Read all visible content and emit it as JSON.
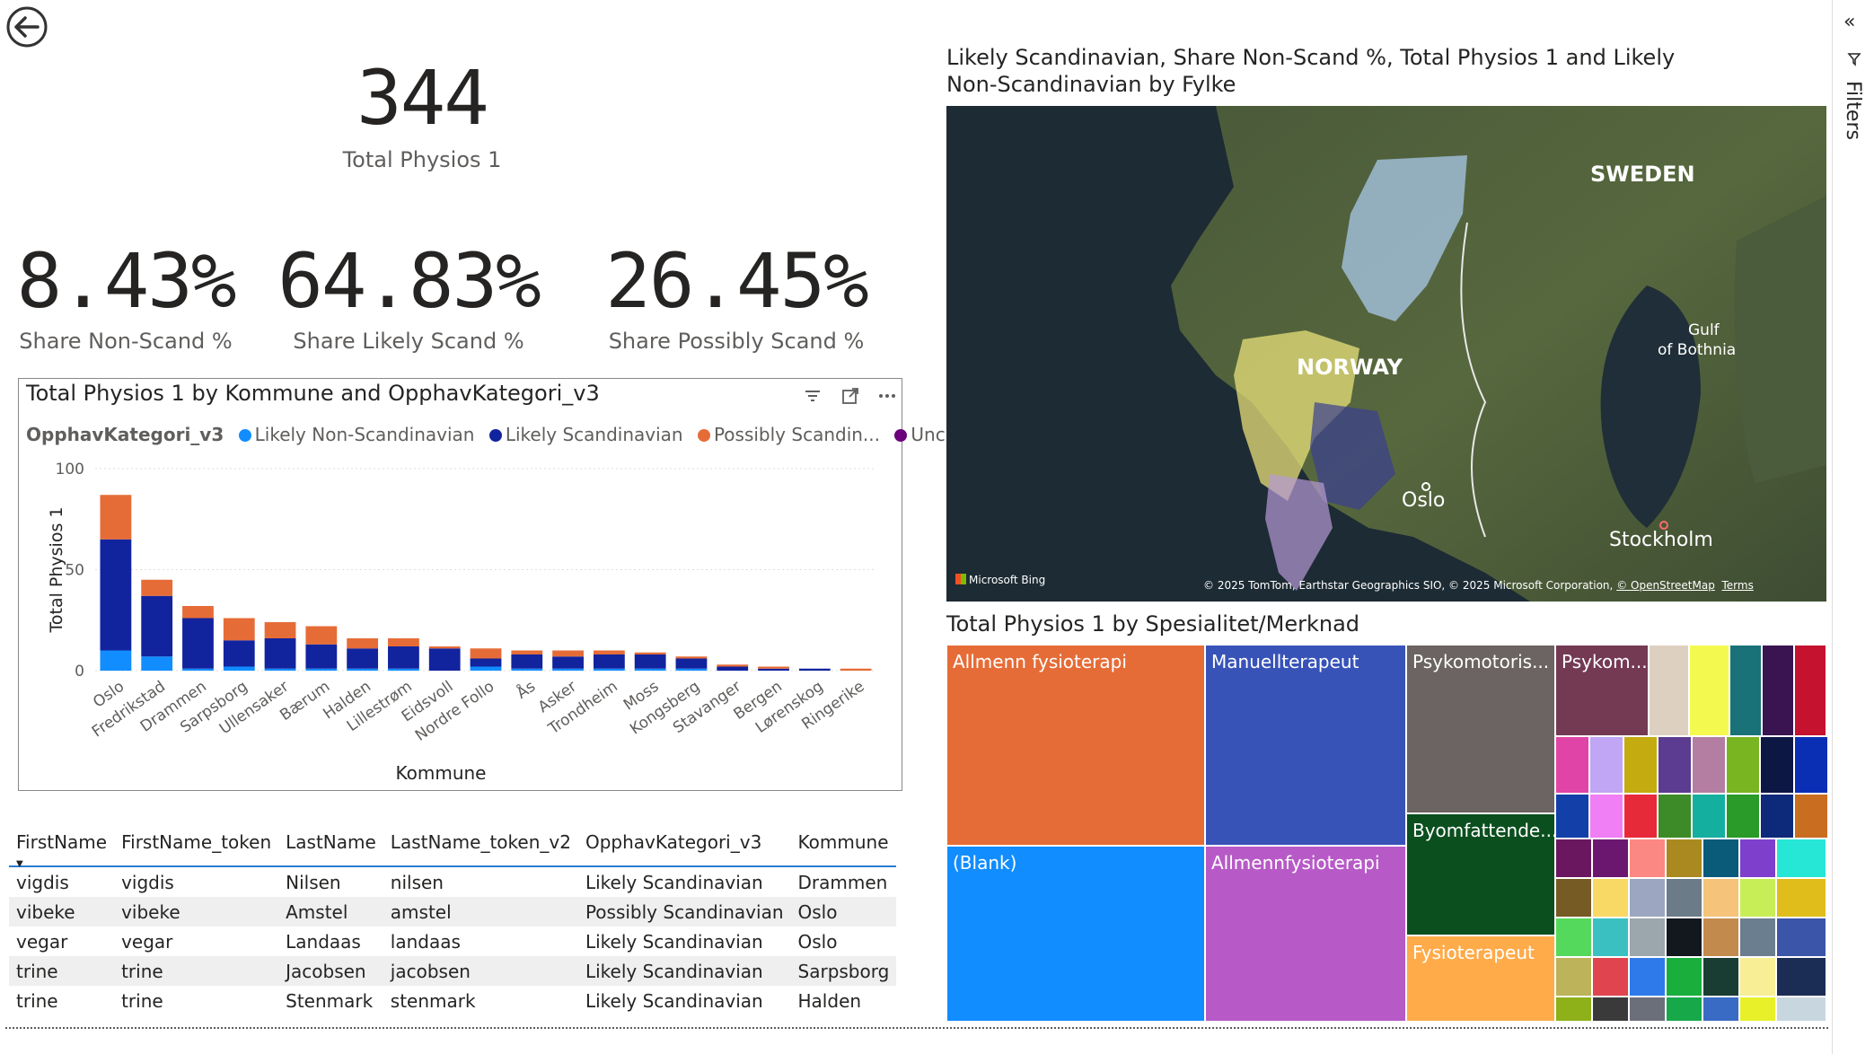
{
  "kpis": {
    "total": {
      "value": "344",
      "label": "Total Physios 1"
    },
    "non_scand": {
      "value": "8.43%",
      "label": "Share Non-Scand %"
    },
    "likely_scand": {
      "value": "64.83%",
      "label": "Share Likely Scand %"
    },
    "possibly_scand": {
      "value": "26.45%",
      "label": "Share Possibly Scand %"
    }
  },
  "bar_chart": {
    "title": "Total Physios 1 by Kommune and OpphavKategori_v3",
    "legend_title": "OpphavKategori_v3",
    "legend": [
      {
        "label": "Likely Non-Scandinavian",
        "color": "#118dff"
      },
      {
        "label": "Likely Scandinavian",
        "color": "#12239e"
      },
      {
        "label": "Possibly Scandin...",
        "color": "#e66c37"
      },
      {
        "label": "Unclear",
        "color": "#6b007b"
      }
    ]
  },
  "map": {
    "title_line1": "Likely Scandinavian, Share Non-Scand %, Total Physios 1 and Likely",
    "title_line2": "Non-Scandinavian by Fylke",
    "labels": {
      "sweden": "SWEDEN",
      "norway": "NORWAY",
      "gulf1": "Gulf",
      "gulf2": "of Bothnia",
      "oslo": "Oslo",
      "stockholm": "Stockholm"
    },
    "logo": "Microsoft Bing",
    "attribution": "© 2025 TomTom, Earthstar Geographics SIO, © 2025 Microsoft Corporation,",
    "osm": "© OpenStreetMap",
    "terms": "Terms"
  },
  "treemap": {
    "title": "Total Physios 1 by Spesialitet/Merknad",
    "tiles": [
      {
        "label": "Allmenn fysioterapi",
        "color": "#e66c37"
      },
      {
        "label": "(Blank)",
        "color": "#118dff"
      },
      {
        "label": "Manuellterapeut",
        "color": "#3853b8"
      },
      {
        "label": "Allmennfysioterapi",
        "color": "#b75ac7"
      },
      {
        "label": "Psykomotoris...",
        "color": "#6b6462"
      },
      {
        "label": "Byomfattende...",
        "color": "#0b4f1f"
      },
      {
        "label": "Fysioterapeut",
        "color": "#ffab4a"
      },
      {
        "label": "Psykom...",
        "color": "#743a54"
      }
    ],
    "small_colors": [
      "#ded0c0",
      "#f4f950",
      "#197278",
      "#3a1450",
      "#c4122f",
      "#e044a7",
      "#c0a6f5",
      "#c4ab10",
      "#5b3c90",
      "#b47ea3",
      "#79b521",
      "#0c1744",
      "#0a2fb5",
      "#1340a8",
      "#f07ef5",
      "#e62a3a",
      "#3d8a28",
      "#15afa0",
      "#2a9a28",
      "#0d2a7a",
      "#c96d20",
      "#6b1760",
      "#6b1770",
      "#fb8882",
      "#aa8a20",
      "#0a5a7a",
      "#7f3fcd",
      "#26e6d6",
      "#765b25",
      "#f8d966",
      "#9ca6c0",
      "#6b7b88",
      "#f5c37a",
      "#c8ee57",
      "#e0bd1a",
      "#55d95c",
      "#3bc0c1",
      "#9ba6ad",
      "#13181f",
      "#c38a4e",
      "#6b7e8f",
      "#3b56a8",
      "#bcb35a",
      "#e0444e",
      "#2f7aeb",
      "#1aae3c",
      "#1a3d33",
      "#f8ee95",
      "#1b2c55",
      "#8eb018",
      "#3a3a3a",
      "#6b6f7a",
      "#17a84a",
      "#3a6bc4",
      "#e8f02a",
      "#c8d6e0",
      "#7a6c31",
      "#1fc6ef",
      "#f5620a",
      "#1c3440",
      "#142433",
      "#8dbb2e",
      "#9aa4ff",
      "#d027e3",
      "#2e5a3e",
      "#a89d88",
      "#141a24",
      "#5e1d3a",
      "#7be52a",
      "#f7b68a",
      "#7a7a98"
    ]
  },
  "table": {
    "headers": [
      "FirstName",
      "FirstName_token",
      "LastName",
      "LastName_token_v2",
      "OpphavKategori_v3",
      "Kommune"
    ],
    "rows": [
      [
        "vigdis",
        "vigdis",
        "Nilsen",
        "nilsen",
        "Likely Scandinavian",
        "Drammen"
      ],
      [
        "vibeke",
        "vibeke",
        "Amstel",
        "amstel",
        "Possibly Scandinavian",
        "Oslo"
      ],
      [
        "vegar",
        "vegar",
        "Landaas",
        "landaas",
        "Likely Scandinavian",
        "Oslo"
      ],
      [
        "trine",
        "trine",
        "Jacobsen",
        "jacobsen",
        "Likely Scandinavian",
        "Sarpsborg"
      ],
      [
        "trine",
        "trine",
        "Stenmark",
        "stenmark",
        "Likely Scandinavian",
        "Halden"
      ]
    ]
  },
  "filters_label": "Filters",
  "chart_data": {
    "type": "bar",
    "stacked": true,
    "title": "Total Physios 1 by Kommune and OpphavKategori_v3",
    "xlabel": "Kommune",
    "ylabel": "Total Physios 1",
    "ylim": [
      0,
      100
    ],
    "yticks": [
      0,
      50,
      100
    ],
    "legend_title": "OpphavKategori_v3",
    "legend_position": "top",
    "categories": [
      "Oslo",
      "Fredrikstad",
      "Drammen",
      "Sarpsborg",
      "Ullensaker",
      "Bærum",
      "Halden",
      "Lillestrøm",
      "Eidsvoll",
      "Nordre Follo",
      "Ås",
      "Asker",
      "Trondheim",
      "Moss",
      "Kongsberg",
      "Stavanger",
      "Bergen",
      "Lørenskog",
      "Ringerike"
    ],
    "series": [
      {
        "name": "Likely Non-Scandinavian",
        "color": "#118dff",
        "values": [
          10,
          7,
          1,
          2,
          1,
          1,
          1,
          1,
          0,
          2,
          1,
          1,
          1,
          1,
          1,
          0,
          0,
          0,
          0
        ]
      },
      {
        "name": "Likely Scandinavian",
        "color": "#12239e",
        "values": [
          55,
          30,
          25,
          13,
          15,
          12,
          10,
          11,
          11,
          4,
          7,
          6,
          7,
          7,
          5,
          2,
          1,
          1,
          0
        ]
      },
      {
        "name": "Possibly Scandin...",
        "color": "#e66c37",
        "values": [
          22,
          8,
          6,
          11,
          8,
          9,
          5,
          4,
          1,
          5,
          2,
          3,
          2,
          1,
          1,
          1,
          1,
          0,
          1
        ]
      },
      {
        "name": "Unclear",
        "color": "#6b007b",
        "values": [
          0,
          0,
          0,
          0,
          0,
          0,
          0,
          0,
          0,
          0,
          0,
          0,
          0,
          0,
          0,
          0,
          0,
          0,
          0
        ]
      }
    ]
  }
}
